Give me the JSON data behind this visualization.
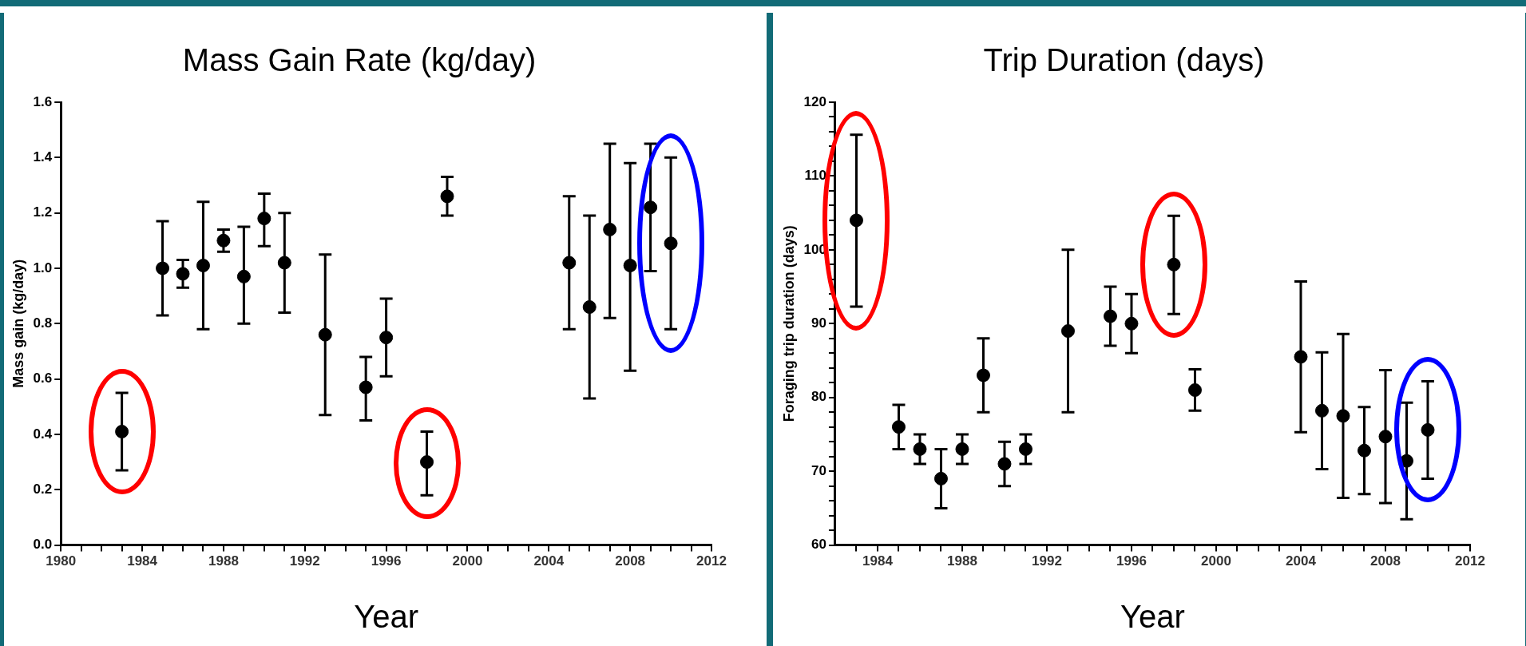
{
  "chart_data": [
    {
      "type": "scatter",
      "title": "Mass Gain Rate (kg/day)",
      "xlabel": "Year",
      "ylabel": "Mass gain (kg/day)",
      "marker": "circle",
      "grid": false,
      "legend": false,
      "x": [
        1983,
        1985,
        1986,
        1987,
        1988,
        1989,
        1990,
        1991,
        1993,
        1995,
        1996,
        1998,
        1999,
        2005,
        2006,
        2007,
        2008,
        2009,
        2010
      ],
      "series": [
        {
          "color": "#000000",
          "values": [
            0.41,
            1.0,
            0.98,
            1.01,
            1.1,
            0.97,
            1.18,
            1.02,
            0.76,
            0.57,
            0.75,
            0.3,
            1.26,
            1.02,
            0.86,
            1.14,
            1.01,
            1.22,
            1.09
          ],
          "errors": [
            [
              0.27,
              0.55
            ],
            [
              0.83,
              1.17
            ],
            [
              0.93,
              1.03
            ],
            [
              0.78,
              1.24
            ],
            [
              1.06,
              1.14
            ],
            [
              0.8,
              1.15
            ],
            [
              1.08,
              1.27
            ],
            [
              0.84,
              1.2
            ],
            [
              0.47,
              1.05
            ],
            [
              0.45,
              0.68
            ],
            [
              0.61,
              0.89
            ],
            [
              0.18,
              0.41
            ],
            [
              1.19,
              1.33
            ],
            [
              0.78,
              1.26
            ],
            [
              0.53,
              1.19
            ],
            [
              0.82,
              1.45
            ],
            [
              0.63,
              1.38
            ],
            [
              0.99,
              1.45
            ],
            [
              0.78,
              1.4
            ]
          ]
        }
      ],
      "xlim": [
        1980,
        2012
      ],
      "xticks": [
        1980,
        {
          "value": 1981,
          "label": null
        },
        {
          "value": 1982,
          "label": null
        },
        {
          "value": 1983,
          "label": null
        },
        1984,
        {
          "value": 1985,
          "label": null
        },
        {
          "value": 1986,
          "label": null
        },
        {
          "value": 1987,
          "label": null
        },
        1988,
        {
          "value": 1989,
          "label": null
        },
        {
          "value": 1990,
          "label": null
        },
        {
          "value": 1991,
          "label": null
        },
        1992,
        {
          "value": 1993,
          "label": null
        },
        {
          "value": 1994,
          "label": null
        },
        {
          "value": 1995,
          "label": null
        },
        1996,
        {
          "value": 1997,
          "label": null
        },
        {
          "value": 1998,
          "label": null
        },
        {
          "value": 1999,
          "label": null
        },
        2000,
        {
          "value": 2001,
          "label": null
        },
        {
          "value": 2002,
          "label": null
        },
        {
          "value": 2003,
          "label": null
        },
        2004,
        {
          "value": 2005,
          "label": null
        },
        {
          "value": 2006,
          "label": null
        },
        {
          "value": 2007,
          "label": null
        },
        2008,
        {
          "value": 2009,
          "label": null
        },
        {
          "value": 2010,
          "label": null
        },
        {
          "value": 2011,
          "label": null
        },
        2012
      ],
      "ylim": [
        0,
        1.6
      ],
      "yticks": [
        {
          "value": 0,
          "label": "0.0"
        },
        0.2,
        0.4,
        0.6,
        0.8,
        {
          "value": 1,
          "label": "1.0"
        },
        1.2,
        1.4,
        1.6
      ]
    },
    {
      "type": "scatter",
      "title": "Trip Duration (days)",
      "xlabel": "Year",
      "ylabel": "Foraging trip duration (days)",
      "marker": "circle",
      "grid": false,
      "legend": false,
      "x": [
        1983,
        1985,
        1986,
        1987,
        1988,
        1989,
        1990,
        1991,
        1993,
        1995,
        1996,
        1998,
        1999,
        2004,
        2005,
        2006,
        2007,
        2008,
        2009,
        2010
      ],
      "series": [
        {
          "color": "#000000",
          "values": [
            104,
            76,
            73,
            69,
            73,
            83,
            71,
            73,
            89,
            91,
            90,
            98,
            81,
            85.5,
            78.2,
            77.5,
            72.8,
            74.7,
            71.4,
            75.6
          ],
          "errors": [
            [
              92.3,
              115.6
            ],
            [
              73,
              79
            ],
            [
              71,
              75
            ],
            [
              65,
              73
            ],
            [
              71,
              75
            ],
            [
              78,
              88
            ],
            [
              68,
              74
            ],
            [
              71,
              75
            ],
            [
              78,
              100
            ],
            [
              87,
              95
            ],
            [
              86,
              94
            ],
            [
              91.3,
              104.6
            ],
            [
              78.2,
              83.8
            ],
            [
              75.3,
              95.7
            ],
            [
              70.3,
              86.1
            ],
            [
              66.4,
              88.6
            ],
            [
              66.9,
              78.7
            ],
            [
              65.7,
              83.7
            ],
            [
              63.5,
              79.3
            ],
            [
              69,
              82.2
            ]
          ]
        }
      ],
      "xlim": [
        1982,
        2012
      ],
      "xticks": [
        {
          "value": 1983,
          "label": null
        },
        1984,
        {
          "value": 1985,
          "label": null
        },
        {
          "value": 1986,
          "label": null
        },
        {
          "value": 1987,
          "label": null
        },
        1988,
        {
          "value": 1989,
          "label": null
        },
        {
          "value": 1990,
          "label": null
        },
        {
          "value": 1991,
          "label": null
        },
        1992,
        {
          "value": 1993,
          "label": null
        },
        {
          "value": 1994,
          "label": null
        },
        {
          "value": 1995,
          "label": null
        },
        1996,
        {
          "value": 1997,
          "label": null
        },
        {
          "value": 1998,
          "label": null
        },
        {
          "value": 1999,
          "label": null
        },
        2000,
        {
          "value": 2001,
          "label": null
        },
        {
          "value": 2002,
          "label": null
        },
        {
          "value": 2003,
          "label": null
        },
        2004,
        {
          "value": 2005,
          "label": null
        },
        {
          "value": 2006,
          "label": null
        },
        {
          "value": 2007,
          "label": null
        },
        2008,
        {
          "value": 2009,
          "label": null
        },
        {
          "value": 2010,
          "label": null
        },
        {
          "value": 2011,
          "label": null
        },
        2012
      ],
      "ylim": [
        60,
        120
      ],
      "yticks": [
        60,
        {
          "value": 62,
          "label": null
        },
        {
          "value": 64,
          "label": null
        },
        {
          "value": 66,
          "label": null
        },
        {
          "value": 68,
          "label": null
        },
        70,
        {
          "value": 72,
          "label": null
        },
        {
          "value": 74,
          "label": null
        },
        {
          "value": 76,
          "label": null
        },
        {
          "value": 78,
          "label": null
        },
        80,
        {
          "value": 82,
          "label": null
        },
        {
          "value": 84,
          "label": null
        },
        {
          "value": 86,
          "label": null
        },
        {
          "value": 88,
          "label": null
        },
        90,
        {
          "value": 92,
          "label": null
        },
        {
          "value": 94,
          "label": null
        },
        {
          "value": 96,
          "label": null
        },
        {
          "value": 98,
          "label": null
        },
        100,
        {
          "value": 102,
          "label": null
        },
        {
          "value": 104,
          "label": null
        },
        {
          "value": 106,
          "label": null
        },
        {
          "value": 108,
          "label": null
        },
        110,
        {
          "value": 112,
          "label": null
        },
        {
          "value": 114,
          "label": null
        },
        {
          "value": 116,
          "label": null
        },
        {
          "value": 118,
          "label": null
        },
        120
      ]
    }
  ]
}
